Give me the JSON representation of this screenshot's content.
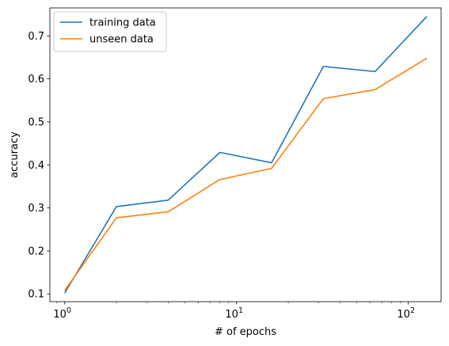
{
  "chart_data": {
    "type": "line",
    "xlabel": "# of epochs",
    "ylabel": "accuracy",
    "xscale": "log",
    "xlim": [
      0.82,
      155
    ],
    "ylim": [
      0.082,
      0.765
    ],
    "x": [
      1,
      2,
      4,
      8,
      16,
      32,
      64,
      128
    ],
    "series": [
      {
        "name": "training data",
        "color": "#1f77b4",
        "values": [
          0.102,
          0.303,
          0.318,
          0.429,
          0.405,
          0.629,
          0.617,
          0.745
        ]
      },
      {
        "name": "unseen data",
        "color": "#ff7f0e",
        "values": [
          0.108,
          0.277,
          0.291,
          0.366,
          0.392,
          0.554,
          0.575,
          0.648
        ]
      }
    ],
    "yticks": [
      0.1,
      0.2,
      0.3,
      0.4,
      0.5,
      0.6,
      0.7
    ],
    "ytick_labels": [
      "0.1",
      "0.2",
      "0.3",
      "0.4",
      "0.5",
      "0.6",
      "0.7"
    ],
    "xticks_major": [
      {
        "value": 1,
        "base": "10",
        "exp": "0"
      },
      {
        "value": 10,
        "base": "10",
        "exp": "1"
      },
      {
        "value": 100,
        "base": "10",
        "exp": "2"
      }
    ],
    "legend": "top-left",
    "grid": false
  }
}
